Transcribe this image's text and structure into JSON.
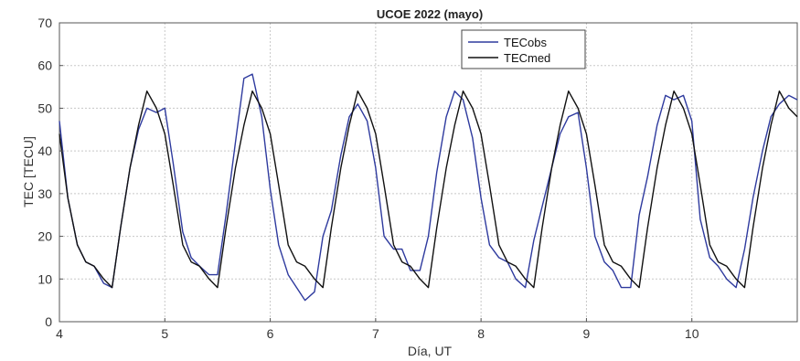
{
  "chart_data": {
    "type": "line",
    "title": "UCOE 2022 (mayo)",
    "xlabel": "Día, UT",
    "ylabel": "TEC [TECU]",
    "xlim": [
      4,
      11
    ],
    "ylim": [
      0,
      70
    ],
    "xticks": [
      4,
      5,
      6,
      7,
      8,
      9,
      10
    ],
    "yticks": [
      0,
      10,
      20,
      30,
      40,
      50,
      60,
      70
    ],
    "grid": true,
    "legend_position": "top-center",
    "series": [
      {
        "name": "TECobs",
        "color": "#2e3a9e",
        "x": [
          4.0,
          4.08,
          4.17,
          4.25,
          4.33,
          4.42,
          4.5,
          4.58,
          4.67,
          4.75,
          4.83,
          4.92,
          5.0,
          5.08,
          5.17,
          5.25,
          5.33,
          5.42,
          5.5,
          5.58,
          5.67,
          5.75,
          5.83,
          5.92,
          6.0,
          6.08,
          6.17,
          6.25,
          6.33,
          6.42,
          6.5,
          6.58,
          6.67,
          6.75,
          6.83,
          6.92,
          7.0,
          7.08,
          7.17,
          7.25,
          7.33,
          7.42,
          7.5,
          7.58,
          7.67,
          7.75,
          7.83,
          7.92,
          8.0,
          8.08,
          8.17,
          8.25,
          8.33,
          8.42,
          8.5,
          8.58,
          8.67,
          8.75,
          8.83,
          8.92,
          9.0,
          9.08,
          9.17,
          9.25,
          9.33,
          9.42,
          9.5,
          9.58,
          9.67,
          9.75,
          9.83,
          9.92,
          10.0,
          10.08,
          10.17,
          10.25,
          10.33,
          10.42,
          10.5,
          10.58,
          10.67,
          10.75,
          10.83,
          10.92,
          11.0
        ],
        "y": [
          47,
          29,
          18,
          14,
          13,
          9,
          8,
          22,
          36,
          45,
          50,
          49,
          50,
          37,
          21,
          15,
          13,
          11,
          11,
          25,
          42,
          57,
          58,
          48,
          31,
          18,
          11,
          8,
          5,
          7,
          20,
          26,
          39,
          48,
          51,
          47,
          36,
          20,
          17,
          17,
          12,
          12,
          20,
          35,
          48,
          54,
          52,
          43,
          29,
          18,
          15,
          14,
          10,
          8,
          19,
          27,
          36,
          44,
          48,
          49,
          36,
          20,
          14,
          12,
          8,
          8,
          25,
          34,
          46,
          53,
          52,
          53,
          47,
          24,
          15,
          13,
          10,
          8,
          17,
          29,
          40,
          48,
          51,
          53,
          52
        ]
      },
      {
        "name": "TECmed",
        "color": "#111111",
        "x": [
          4.0,
          4.08,
          4.17,
          4.25,
          4.33,
          4.42,
          4.5,
          4.58,
          4.67,
          4.75,
          4.83,
          4.92,
          5.0,
          5.08,
          5.17,
          5.25,
          5.33,
          5.42,
          5.5,
          5.58,
          5.67,
          5.75,
          5.83,
          5.92,
          6.0,
          6.08,
          6.17,
          6.25,
          6.33,
          6.42,
          6.5,
          6.58,
          6.67,
          6.75,
          6.83,
          6.92,
          7.0,
          7.08,
          7.17,
          7.25,
          7.33,
          7.42,
          7.5,
          7.58,
          7.67,
          7.75,
          7.83,
          7.92,
          8.0,
          8.08,
          8.17,
          8.25,
          8.33,
          8.42,
          8.5,
          8.58,
          8.67,
          8.75,
          8.83,
          8.92,
          9.0,
          9.08,
          9.17,
          9.25,
          9.33,
          9.42,
          9.5,
          9.58,
          9.67,
          9.75,
          9.83,
          9.92,
          10.0,
          10.08,
          10.17,
          10.25,
          10.33,
          10.42,
          10.5,
          10.58,
          10.67,
          10.75,
          10.83,
          10.92,
          11.0
        ],
        "y": [
          44,
          29,
          18,
          14,
          13,
          10,
          8,
          22,
          36,
          46,
          54,
          50,
          44,
          32,
          18,
          14,
          13,
          10,
          8,
          22,
          36,
          46,
          54,
          50,
          44,
          32,
          18,
          14,
          13,
          10,
          8,
          22,
          36,
          46,
          54,
          50,
          44,
          32,
          18,
          14,
          13,
          10,
          8,
          22,
          36,
          46,
          54,
          50,
          44,
          32,
          18,
          14,
          13,
          10,
          8,
          22,
          36,
          46,
          54,
          50,
          44,
          32,
          18,
          14,
          13,
          10,
          8,
          22,
          36,
          46,
          54,
          50,
          44,
          32,
          18,
          14,
          13,
          10,
          8,
          22,
          36,
          46,
          54,
          50,
          48
        ]
      }
    ]
  }
}
